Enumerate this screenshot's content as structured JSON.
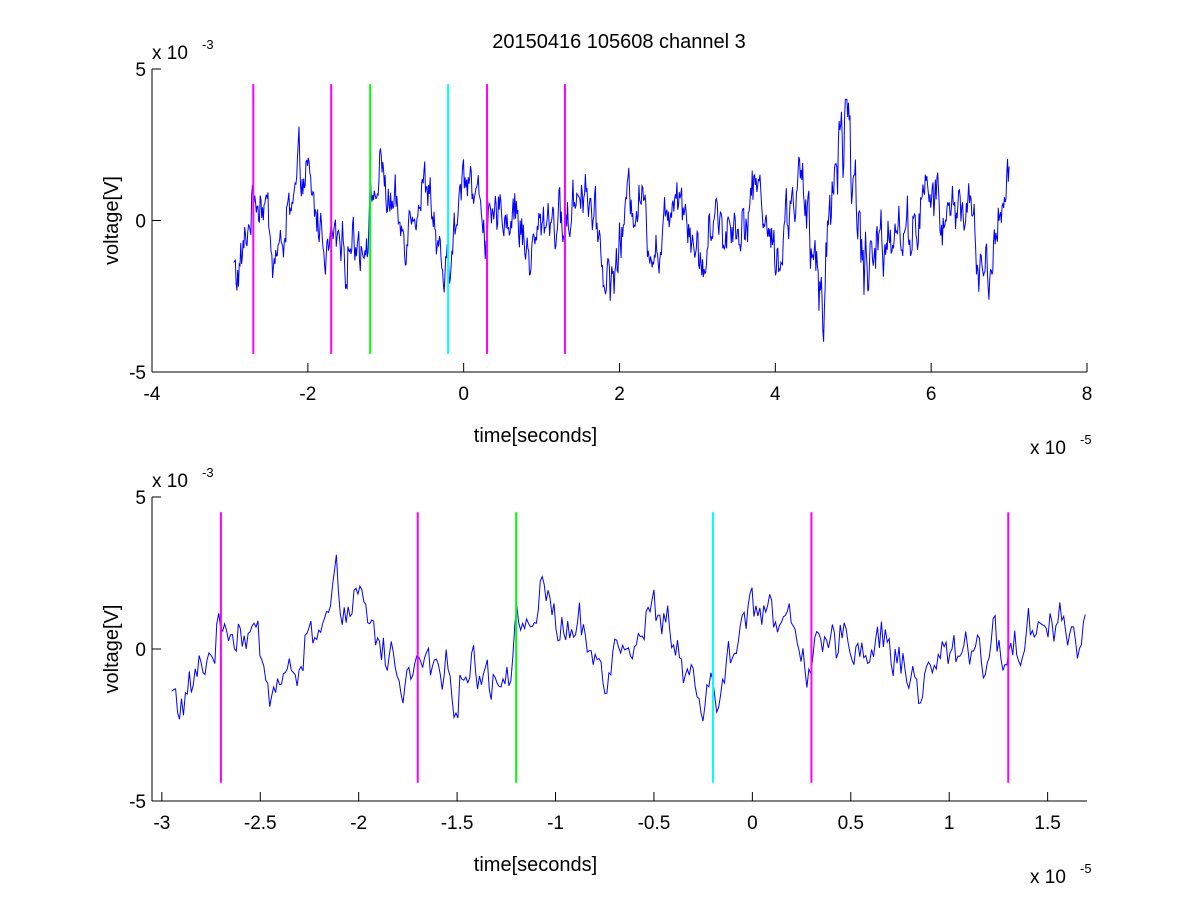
{
  "title": "20150416 105608 channel 3",
  "chart_data": [
    {
      "type": "line",
      "xlabel": "time[seconds]",
      "ylabel": "voltage[V]",
      "x_exponent_label": "x 10",
      "x_exponent": "-5",
      "y_exponent_label": "x 10",
      "y_exponent": "-3",
      "xlim": [
        -4,
        8
      ],
      "ylim": [
        -5,
        5
      ],
      "xticks": [
        -4,
        -2,
        0,
        2,
        4,
        6,
        8
      ],
      "xtick_labels": [
        "-4",
        "-2",
        "0",
        "2",
        "4",
        "6",
        "8"
      ],
      "yticks": [
        5,
        0,
        -5
      ],
      "ytick_labels": [
        "5",
        "0",
        "-5"
      ],
      "signal": {
        "color": "#0000ff",
        "x_start": -2.95,
        "x_end": 7.0,
        "samples": 1000
      },
      "markers": [
        {
          "x": -2.7,
          "color": "#ff00ff"
        },
        {
          "x": -1.7,
          "color": "#ff00ff"
        },
        {
          "x": -1.2,
          "color": "#00ff00"
        },
        {
          "x": -0.2,
          "color": "#00ffff"
        },
        {
          "x": 0.3,
          "color": "#ff00ff"
        },
        {
          "x": 1.3,
          "color": "#ff00ff"
        }
      ],
      "marker_y_range": [
        -4.4,
        4.5
      ]
    },
    {
      "type": "line",
      "xlabel": "time[seconds]",
      "ylabel": "voltage[V]",
      "x_exponent_label": "x 10",
      "x_exponent": "-5",
      "y_exponent_label": "x 10",
      "y_exponent": "-3",
      "xlim": [
        -3.05,
        1.7
      ],
      "ylim": [
        -5,
        5
      ],
      "xticks": [
        -3,
        -2.5,
        -2,
        -1.5,
        -1,
        -0.5,
        0,
        0.5,
        1,
        1.5
      ],
      "xtick_labels": [
        "-3",
        "-2.5",
        "-2",
        "-1.5",
        "-1",
        "-0.5",
        "0",
        "0.5",
        "1",
        "1.5"
      ],
      "yticks": [
        5,
        0,
        -5
      ],
      "ytick_labels": [
        "5",
        "0",
        "-5"
      ],
      "signal": {
        "color": "#0000ff",
        "x_start": -2.95,
        "x_end": 1.7,
        "samples": 470
      },
      "markers": [
        {
          "x": -2.7,
          "color": "#ff00ff"
        },
        {
          "x": -1.7,
          "color": "#ff00ff"
        },
        {
          "x": -1.2,
          "color": "#00ff00"
        },
        {
          "x": -0.2,
          "color": "#00ffff"
        },
        {
          "x": 0.3,
          "color": "#ff00ff"
        },
        {
          "x": 1.3,
          "color": "#ff00ff"
        }
      ],
      "marker_y_range": [
        -4.4,
        4.5
      ]
    }
  ]
}
